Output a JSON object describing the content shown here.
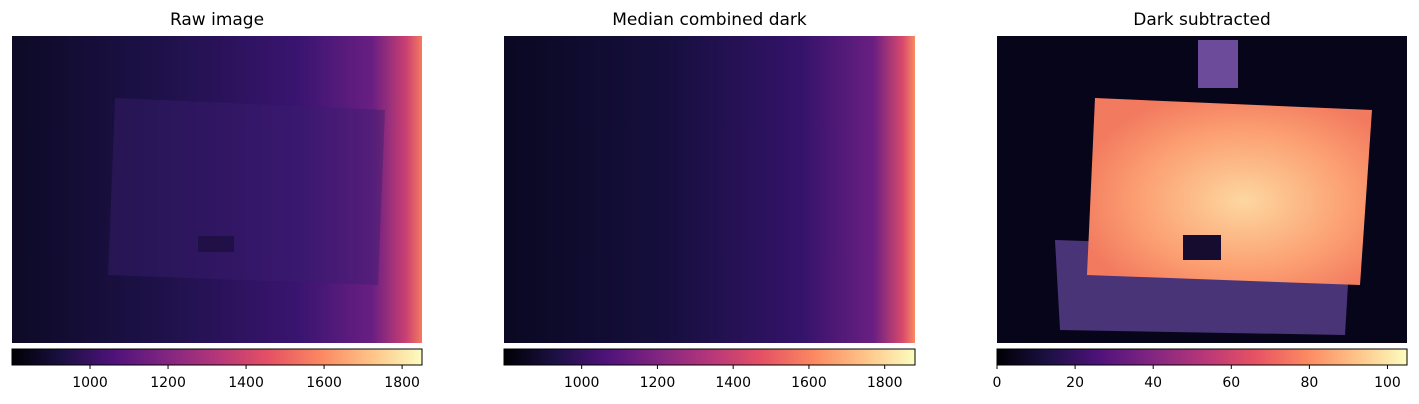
{
  "chart_data": [
    {
      "type": "image",
      "title": "Raw image",
      "cmap": "magma",
      "xlim": [
        800,
        1851
      ],
      "xticks": [
        1000,
        1200,
        1400,
        1600,
        1800
      ]
    },
    {
      "type": "image",
      "title": "Median combined dark",
      "cmap": "magma",
      "xlim": [
        795,
        1880
      ],
      "xticks": [
        1000,
        1200,
        1400,
        1600,
        1800
      ]
    },
    {
      "type": "image",
      "title": "Dark subtracted",
      "cmap": "magma",
      "xlim": [
        0,
        105
      ],
      "xticks": [
        0,
        20,
        40,
        60,
        80,
        100
      ]
    }
  ]
}
